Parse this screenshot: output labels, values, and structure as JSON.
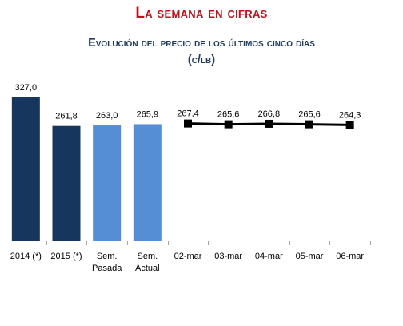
{
  "header": {
    "title": "La semana en cifras",
    "subtitle_line1": "Evolución del precio de los últimos cinco días",
    "subtitle_line2": "(c/lb)"
  },
  "colors": {
    "title": "#c0121a",
    "subtitle": "#1f3a5f",
    "bar_dark": "#17365d",
    "bar_light": "#558ed5",
    "line": "#000000"
  },
  "chart_data": {
    "type": "bar",
    "categories": [
      [
        "2014 (*)"
      ],
      [
        "2015 (*)"
      ],
      [
        "Sem.",
        "Pasada"
      ],
      [
        "Sem.",
        "Actual"
      ],
      [
        "02-mar"
      ],
      [
        "03-mar"
      ],
      [
        "04-mar"
      ],
      [
        "05-mar"
      ],
      [
        "06-mar"
      ]
    ],
    "bars": [
      {
        "category_index": 0,
        "value": 327.0,
        "label": "327,0",
        "color": "#17365d"
      },
      {
        "category_index": 1,
        "value": 261.8,
        "label": "261,8",
        "color": "#17365d"
      },
      {
        "category_index": 2,
        "value": 263.0,
        "label": "263,0",
        "color": "#558ed5"
      },
      {
        "category_index": 3,
        "value": 265.9,
        "label": "265,9",
        "color": "#558ed5"
      }
    ],
    "line": {
      "color": "#000000",
      "marker": "square",
      "points": [
        {
          "category_index": 4,
          "value": 267.4,
          "label": "267,4"
        },
        {
          "category_index": 5,
          "value": 265.6,
          "label": "265,6"
        },
        {
          "category_index": 6,
          "value": 266.8,
          "label": "266,8"
        },
        {
          "category_index": 7,
          "value": 265.6,
          "label": "265,6"
        },
        {
          "category_index": 8,
          "value": 264.3,
          "label": "264,3"
        }
      ]
    },
    "ylim": [
      0,
      327
    ],
    "y_axis_visible": false,
    "grid": false
  }
}
